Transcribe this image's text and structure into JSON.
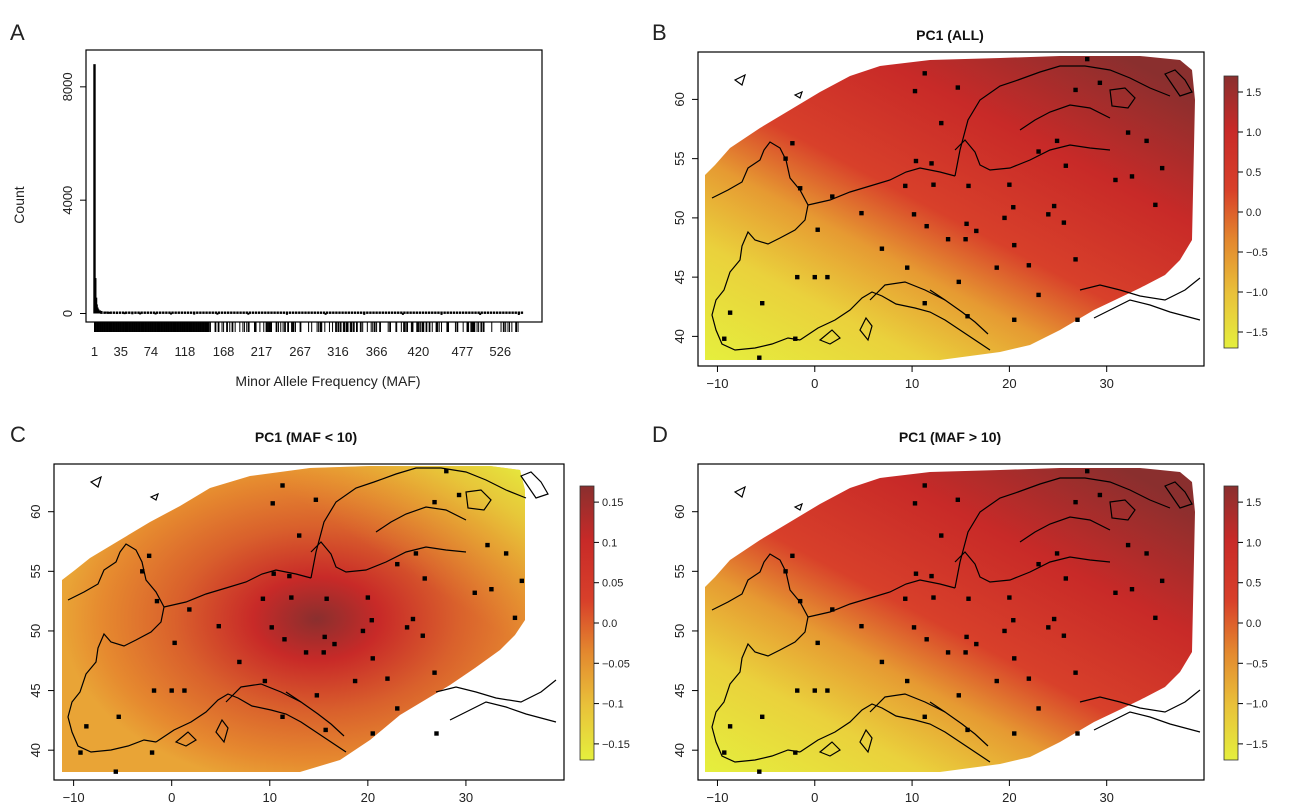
{
  "chart_data": [
    {
      "panel": "A",
      "type": "bar",
      "xlabel": "Minor Allele Frequency (MAF)",
      "ylabel": "Count",
      "x_tick_labels": [
        "1",
        "35",
        "74",
        "118",
        "168",
        "217",
        "267",
        "316",
        "366",
        "420",
        "477",
        "526"
      ],
      "y_tick_labels": [
        "0",
        "4000",
        "8000"
      ],
      "x_tick_values": [
        1,
        35,
        74,
        118,
        168,
        217,
        267,
        316,
        366,
        420,
        477,
        526
      ],
      "y_tick_values": [
        0,
        4000,
        8000
      ],
      "xlim": [
        -10,
        580
      ],
      "ylim": [
        -300,
        9300
      ],
      "x": [
        1,
        2,
        3,
        4,
        5,
        6,
        8,
        10,
        15,
        20,
        30,
        40,
        50,
        60,
        80,
        100,
        130,
        160,
        200,
        250,
        300,
        350,
        400,
        450,
        500,
        550
      ],
      "values": [
        8800,
        1250,
        560,
        320,
        210,
        150,
        110,
        90,
        70,
        55,
        45,
        40,
        35,
        30,
        28,
        26,
        24,
        22,
        20,
        18,
        16,
        15,
        14,
        13,
        12,
        11
      ]
    },
    {
      "panel": "B",
      "type": "heatmap",
      "title": "PC1 (ALL)",
      "x_tick_labels": [
        "−10",
        "0",
        "10",
        "20",
        "30"
      ],
      "y_tick_labels": [
        "40",
        "45",
        "50",
        "55",
        "60"
      ],
      "x_tick_values": [
        -10,
        0,
        10,
        20,
        30
      ],
      "y_tick_values": [
        40,
        45,
        50,
        55,
        60
      ],
      "xlim": [
        -12,
        40
      ],
      "ylim": [
        37.5,
        64
      ],
      "colorbar_labels": [
        "1.5",
        "1.0",
        "0.5",
        "0.0",
        "−0.5",
        "−1.0",
        "−1.5"
      ],
      "colorbar_values": [
        1.5,
        1.0,
        0.5,
        0.0,
        -0.5,
        -1.0,
        -1.5
      ],
      "colorbar_range": [
        -1.7,
        1.7
      ],
      "colors": [
        "#e5ef3d",
        "#e9c13a",
        "#e3862e",
        "#d8402a",
        "#c82a28",
        "#a8302f",
        "#8a2f2e"
      ]
    },
    {
      "panel": "C",
      "type": "heatmap",
      "title": "PC1 (MAF < 10)",
      "x_tick_labels": [
        "−10",
        "0",
        "10",
        "20",
        "30"
      ],
      "y_tick_labels": [
        "40",
        "45",
        "50",
        "55",
        "60"
      ],
      "x_tick_values": [
        -10,
        0,
        10,
        20,
        30
      ],
      "y_tick_values": [
        40,
        45,
        50,
        55,
        60
      ],
      "xlim": [
        -12,
        40
      ],
      "ylim": [
        37.5,
        64
      ],
      "colorbar_labels": [
        "0.15",
        "0.1",
        "0.05",
        "0.0",
        "−0.05",
        "−0.1",
        "−0.15"
      ],
      "colorbar_values": [
        0.15,
        0.1,
        0.05,
        0.0,
        -0.05,
        -0.1,
        -0.15
      ],
      "colorbar_range": [
        -0.17,
        0.17
      ],
      "colors": [
        "#e5ef3d",
        "#e9c13a",
        "#e3862e",
        "#d8402a",
        "#c82a28",
        "#a8302f",
        "#8a2f2e"
      ]
    },
    {
      "panel": "D",
      "type": "heatmap",
      "title": "PC1 (MAF > 10)",
      "x_tick_labels": [
        "−10",
        "0",
        "10",
        "20",
        "30"
      ],
      "y_tick_labels": [
        "40",
        "45",
        "50",
        "55",
        "60"
      ],
      "x_tick_values": [
        -10,
        0,
        10,
        20,
        30
      ],
      "y_tick_values": [
        40,
        45,
        50,
        55,
        60
      ],
      "xlim": [
        -12,
        40
      ],
      "ylim": [
        37.5,
        64
      ],
      "colorbar_labels": [
        "1.5",
        "1.0",
        "0.5",
        "0.0",
        "−0.5",
        "−1.0",
        "−1.5"
      ],
      "colorbar_values": [
        1.5,
        1.0,
        0.5,
        0.0,
        -0.5,
        -1.0,
        -1.5
      ],
      "colorbar_range": [
        -1.7,
        1.7
      ],
      "colors": [
        "#e5ef3d",
        "#e9c13a",
        "#e3862e",
        "#d8402a",
        "#c82a28",
        "#a8302f",
        "#8a2f2e"
      ]
    }
  ],
  "panel_letters": [
    "A",
    "B",
    "C",
    "D"
  ],
  "sample_sites": [
    [
      -8.7,
      42.0
    ],
    [
      -9.3,
      39.8
    ],
    [
      -5.7,
      38.2
    ],
    [
      -5.4,
      42.8
    ],
    [
      -2.0,
      39.8
    ],
    [
      -1.8,
      45.0
    ],
    [
      0.0,
      45.0
    ],
    [
      1.3,
      45.0
    ],
    [
      -1.5,
      52.5
    ],
    [
      -3.0,
      55.0
    ],
    [
      -2.3,
      56.3
    ],
    [
      0.3,
      49.0
    ],
    [
      1.8,
      51.8
    ],
    [
      4.8,
      50.4
    ],
    [
      6.9,
      47.4
    ],
    [
      9.3,
      52.7
    ],
    [
      10.4,
      54.8
    ],
    [
      12.0,
      54.6
    ],
    [
      12.2,
      52.8
    ],
    [
      13.0,
      58.0
    ],
    [
      11.3,
      62.2
    ],
    [
      10.3,
      60.7
    ],
    [
      14.7,
      61.0
    ],
    [
      15.8,
      52.7
    ],
    [
      15.6,
      49.5
    ],
    [
      16.6,
      48.9
    ],
    [
      15.5,
      48.2
    ],
    [
      13.7,
      48.2
    ],
    [
      11.5,
      49.3
    ],
    [
      10.2,
      50.3
    ],
    [
      9.5,
      45.8
    ],
    [
      11.3,
      42.8
    ],
    [
      15.7,
      41.7
    ],
    [
      14.8,
      44.6
    ],
    [
      18.7,
      45.8
    ],
    [
      19.5,
      50.0
    ],
    [
      20.4,
      50.9
    ],
    [
      20.0,
      52.8
    ],
    [
      20.5,
      47.7
    ],
    [
      22.0,
      46.0
    ],
    [
      23.0,
      43.5
    ],
    [
      20.5,
      41.4
    ],
    [
      24.0,
      50.3
    ],
    [
      24.6,
      51.0
    ],
    [
      25.8,
      54.4
    ],
    [
      26.8,
      46.5
    ],
    [
      27.0,
      41.4
    ],
    [
      25.6,
      49.6
    ],
    [
      29.3,
      61.4
    ],
    [
      26.8,
      60.8
    ],
    [
      28.0,
      63.4
    ],
    [
      32.2,
      57.2
    ],
    [
      34.1,
      56.5
    ],
    [
      32.6,
      53.5
    ],
    [
      35.7,
      54.2
    ],
    [
      35.0,
      51.1
    ],
    [
      30.9,
      53.2
    ],
    [
      23.0,
      55.6
    ],
    [
      24.9,
      56.5
    ]
  ]
}
